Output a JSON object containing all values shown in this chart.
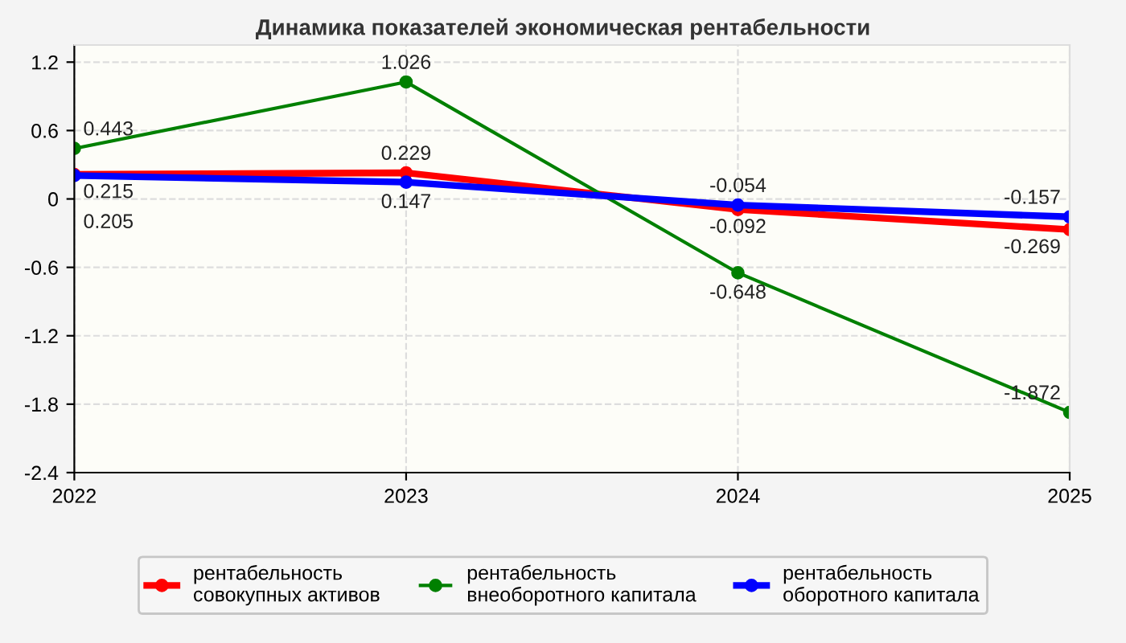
{
  "chart_data": {
    "type": "line",
    "title": "Динамика показателей экономическая рентабельности",
    "x": [
      2022,
      2023,
      2024,
      2025
    ],
    "series": [
      {
        "name": "рентабельность совокупных активов",
        "color": "#ff0000",
        "values": [
          0.215,
          0.229,
          -0.092,
          -0.269
        ]
      },
      {
        "name": "рентабельность внеоборотного капитала",
        "color": "#008000",
        "values": [
          0.443,
          1.026,
          -0.648,
          -1.872
        ]
      },
      {
        "name": "рентабельность оборотного капитала",
        "color": "#0000ff",
        "values": [
          0.205,
          0.147,
          -0.054,
          -0.157
        ]
      }
    ],
    "xlim": [
      2022,
      2025
    ],
    "xticks": [
      2022,
      2023,
      2024,
      2025
    ],
    "ylim": [
      -2.4,
      1.35
    ],
    "yticks": [
      {
        "value": -2.4,
        "label": "-2.4"
      },
      {
        "value": -1.8,
        "label": "-1.8"
      },
      {
        "value": -1.2,
        "label": "-1.2"
      },
      {
        "value": -0.6,
        "label": "-0.6"
      },
      0,
      0.6,
      1.2
    ],
    "grid": true,
    "legend": "bottom",
    "marker": "circle",
    "line_style": "solid",
    "data_labels": true
  }
}
